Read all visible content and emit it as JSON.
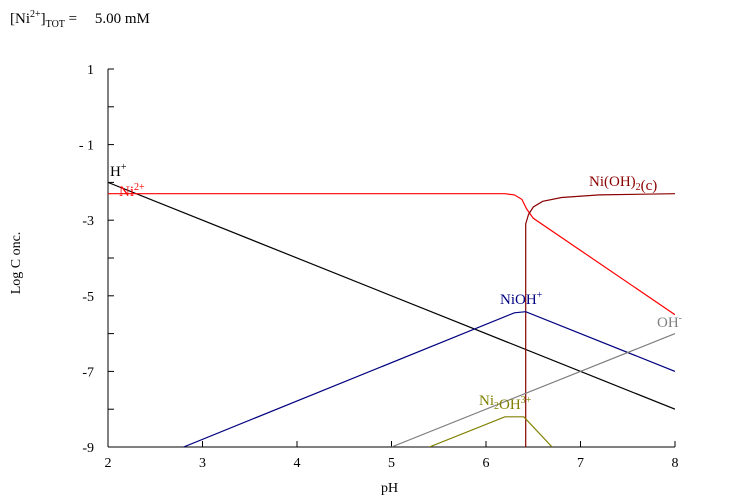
{
  "header": {
    "label_open": "[Ni",
    "label_charge": "2+",
    "label_close": "]",
    "label_subscript": "TOT",
    "label_equals": " = ",
    "value": "5.00 mM"
  },
  "chart_data": {
    "type": "line",
    "title": "",
    "xlabel": "pH",
    "ylabel": "Log  C onc.",
    "xlim": [
      2,
      8
    ],
    "ylim": [
      -9,
      1
    ],
    "xticks": [
      2,
      3,
      4,
      5,
      6,
      7,
      8
    ],
    "xtick_labels": [
      "2",
      "3",
      "4",
      "5",
      "6",
      "7",
      "8"
    ],
    "yticks": [
      1,
      -1,
      -3,
      -5,
      -7,
      -9
    ],
    "ytick_labels": [
      "1",
      "- 1",
      "-3",
      "-5",
      "-7",
      "-9"
    ],
    "grid": false,
    "series": [
      {
        "name": "H+",
        "label_parts": [
          [
            "H",
            ""
          ],
          [
            "+",
            "sup"
          ]
        ],
        "color": "#000000",
        "points": [
          [
            2,
            -2
          ],
          [
            8,
            -8
          ]
        ]
      },
      {
        "name": "Ni2+",
        "label_parts": [
          [
            "Ni",
            ""
          ],
          [
            "2+",
            "sup"
          ]
        ],
        "color": "#ff0000",
        "points": [
          [
            2,
            -2.3
          ],
          [
            6.2,
            -2.3
          ],
          [
            6.3,
            -2.33
          ],
          [
            6.38,
            -2.45
          ],
          [
            6.43,
            -2.7
          ],
          [
            6.5,
            -2.95
          ],
          [
            8,
            -5.5
          ]
        ]
      },
      {
        "name": "Ni(OH)2(c)",
        "label_parts": [
          [
            "Ni(OH)",
            ""
          ],
          [
            "2",
            "sub"
          ],
          [
            "(c)",
            ""
          ]
        ],
        "color": "#8b0000",
        "points": [
          [
            6.42,
            -9
          ],
          [
            6.42,
            -3.1
          ],
          [
            6.45,
            -2.85
          ],
          [
            6.5,
            -2.65
          ],
          [
            6.6,
            -2.5
          ],
          [
            6.8,
            -2.4
          ],
          [
            7.2,
            -2.33
          ],
          [
            8,
            -2.3
          ]
        ]
      },
      {
        "name": "NiOH+",
        "label_parts": [
          [
            "NiOH",
            ""
          ],
          [
            "+",
            "sup"
          ]
        ],
        "color": "#000080",
        "points": [
          [
            2.8,
            -9
          ],
          [
            6.3,
            -5.45
          ],
          [
            6.42,
            -5.42
          ],
          [
            8,
            -7
          ]
        ]
      },
      {
        "name": "OH-",
        "label_parts": [
          [
            "OH",
            ""
          ],
          [
            "-",
            "sup"
          ]
        ],
        "color": "#808080",
        "points": [
          [
            5,
            -9
          ],
          [
            8,
            -6
          ]
        ]
      },
      {
        "name": "Ni2OH3+",
        "label_parts": [
          [
            "Ni",
            ""
          ],
          [
            "2",
            "sub"
          ],
          [
            "OH",
            ""
          ],
          [
            "3+",
            "sup"
          ]
        ],
        "color": "#808000",
        "points": [
          [
            5.4,
            -9
          ],
          [
            6.2,
            -8.2
          ],
          [
            6.4,
            -8.2
          ],
          [
            6.7,
            -9
          ]
        ]
      }
    ]
  }
}
